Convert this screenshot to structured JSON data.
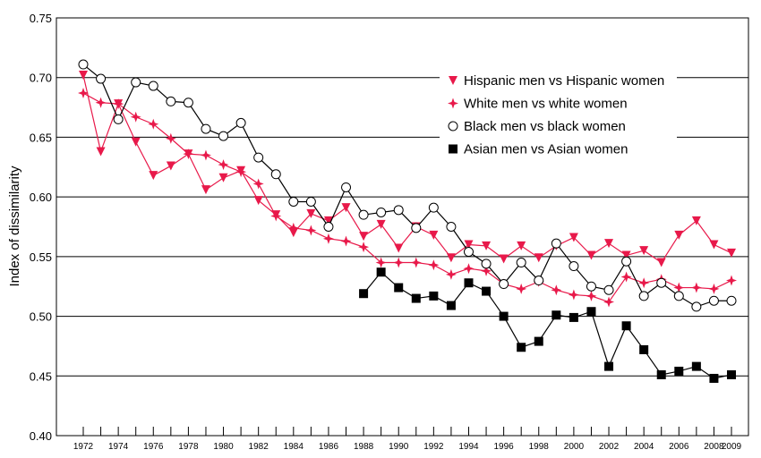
{
  "chart_data": {
    "type": "line",
    "title": "",
    "xlabel": "",
    "ylabel": "Index of dissimilarity",
    "xlim": [
      1972,
      2009
    ],
    "ylim": [
      0.4,
      0.75
    ],
    "y_ticks": [
      "0.40",
      "0.45",
      "0.50",
      "0.55",
      "0.60",
      "0.65",
      "0.70",
      "0.75"
    ],
    "y_tick_values": [
      0.4,
      0.45,
      0.5,
      0.55,
      0.6,
      0.65,
      0.7,
      0.75
    ],
    "x_ticks": [
      "1972",
      "1974",
      "1976",
      "1978",
      "1980",
      "1982",
      "1984",
      "1986",
      "1988",
      "1990",
      "1992",
      "1994",
      "1996",
      "1998",
      "2000",
      "2002",
      "2004",
      "2006",
      "2008",
      "2009"
    ],
    "x_tick_values": [
      1972,
      1974,
      1976,
      1978,
      1980,
      1982,
      1984,
      1986,
      1988,
      1990,
      1992,
      1994,
      1996,
      1998,
      2000,
      2002,
      2004,
      2006,
      2008,
      2009
    ],
    "grid": "horizontal",
    "legend_position": "top-right",
    "series": [
      {
        "name": "Hispanic men vs Hispanic women",
        "color": "#e8194a",
        "marker": "triangle-down",
        "x": [
          1972,
          1973,
          1974,
          1975,
          1976,
          1977,
          1978,
          1979,
          1980,
          1981,
          1982,
          1983,
          1984,
          1985,
          1986,
          1987,
          1988,
          1989,
          1990,
          1991,
          1992,
          1993,
          1994,
          1995,
          1996,
          1997,
          1998,
          1999,
          2000,
          2001,
          2002,
          2003,
          2004,
          2005,
          2006,
          2007,
          2008,
          2009
        ],
        "values": [
          0.702,
          0.638,
          0.678,
          0.646,
          0.618,
          0.626,
          0.636,
          0.606,
          0.616,
          0.622,
          0.597,
          0.585,
          0.57,
          0.586,
          0.58,
          0.591,
          0.567,
          0.577,
          0.557,
          0.575,
          0.568,
          0.549,
          0.56,
          0.559,
          0.548,
          0.559,
          0.549,
          0.559,
          0.566,
          0.551,
          0.561,
          0.551,
          0.555,
          0.545,
          0.568,
          0.58,
          0.56,
          0.553
        ]
      },
      {
        "name": "White men vs white women",
        "color": "#e8194a",
        "marker": "star",
        "x": [
          1972,
          1973,
          1974,
          1975,
          1976,
          1977,
          1978,
          1979,
          1980,
          1981,
          1982,
          1983,
          1984,
          1985,
          1986,
          1987,
          1988,
          1989,
          1990,
          1991,
          1992,
          1993,
          1994,
          1995,
          1996,
          1997,
          1998,
          1999,
          2000,
          2001,
          2002,
          2003,
          2004,
          2005,
          2006,
          2007,
          2008,
          2009
        ],
        "values": [
          0.687,
          0.679,
          0.678,
          0.667,
          0.661,
          0.649,
          0.636,
          0.635,
          0.627,
          0.621,
          0.611,
          0.584,
          0.574,
          0.572,
          0.565,
          0.563,
          0.558,
          0.545,
          0.545,
          0.545,
          0.543,
          0.535,
          0.54,
          0.538,
          0.527,
          0.523,
          0.529,
          0.522,
          0.518,
          0.517,
          0.512,
          0.533,
          0.528,
          0.531,
          0.524,
          0.524,
          0.523,
          0.53
        ]
      },
      {
        "name": "Black men vs black women",
        "color": "#000000",
        "marker": "circle-open",
        "x": [
          1972,
          1973,
          1974,
          1975,
          1976,
          1977,
          1978,
          1979,
          1980,
          1981,
          1982,
          1983,
          1984,
          1985,
          1986,
          1987,
          1988,
          1989,
          1990,
          1991,
          1992,
          1993,
          1994,
          1995,
          1996,
          1997,
          1998,
          1999,
          2000,
          2001,
          2002,
          2003,
          2004,
          2005,
          2006,
          2007,
          2008,
          2009
        ],
        "values": [
          0.711,
          0.699,
          0.665,
          0.696,
          0.693,
          0.68,
          0.679,
          0.657,
          0.651,
          0.662,
          0.633,
          0.619,
          0.596,
          0.596,
          0.575,
          0.608,
          0.585,
          0.587,
          0.589,
          0.574,
          0.591,
          0.575,
          0.554,
          0.544,
          0.527,
          0.545,
          0.53,
          0.561,
          0.542,
          0.525,
          0.522,
          0.546,
          0.517,
          0.528,
          0.517,
          0.508,
          0.513,
          0.513
        ]
      },
      {
        "name": "Asian men vs Asian women",
        "color": "#000000",
        "marker": "square",
        "x": [
          1988,
          1989,
          1990,
          1991,
          1992,
          1993,
          1994,
          1995,
          1996,
          1997,
          1998,
          1999,
          2000,
          2001,
          2002,
          2003,
          2004,
          2005,
          2006,
          2007,
          2008,
          2009
        ],
        "values": [
          0.519,
          0.537,
          0.524,
          0.515,
          0.517,
          0.509,
          0.528,
          0.521,
          0.5,
          0.474,
          0.479,
          0.501,
          0.499,
          0.504,
          0.458,
          0.492,
          0.472,
          0.451,
          0.454,
          0.458,
          0.448,
          0.451
        ]
      }
    ]
  }
}
